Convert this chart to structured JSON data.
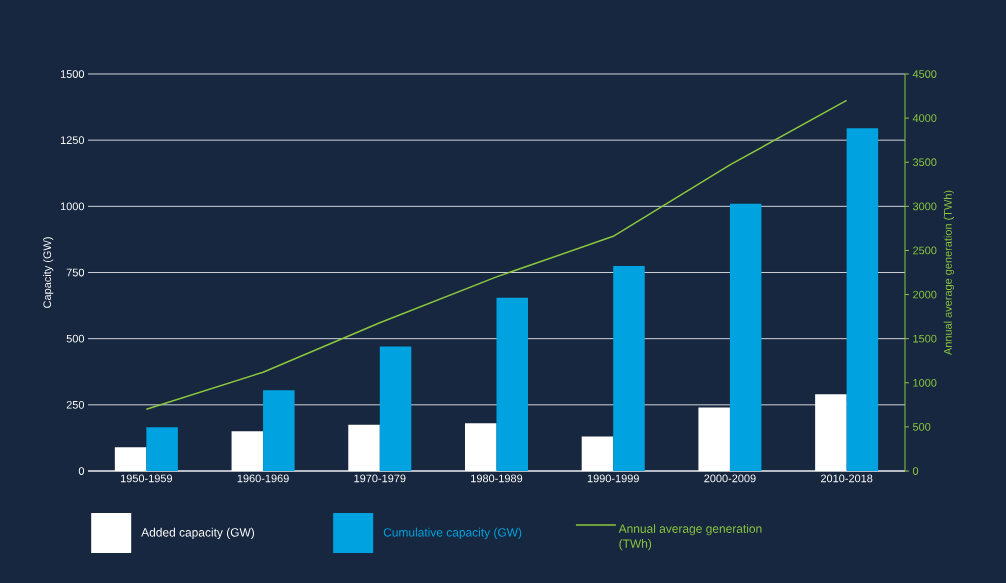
{
  "chart_data": {
    "type": "bar",
    "categories": [
      "1950-1959",
      "1960-1969",
      "1970-1979",
      "1980-1989",
      "1990-1999",
      "2000-2009",
      "2010-2018"
    ],
    "series": [
      {
        "name": "Added capacity (GW)",
        "color": "#ffffff",
        "values": [
          90,
          150,
          175,
          180,
          130,
          240,
          290
        ]
      },
      {
        "name": "Cumulative capacity (GW)",
        "color": "#00a3e0",
        "values": [
          165,
          305,
          470,
          655,
          775,
          1010,
          1295
        ]
      },
      {
        "name": "Annual average generation (TWh)",
        "type": "line",
        "axis": "y2",
        "color": "#8dc63f",
        "values": [
          700,
          1120,
          1680,
          2200,
          2660,
          3470,
          4200
        ]
      }
    ],
    "ylabel": "Capacity (GW)",
    "y2label": "Annual average generation (TWh)",
    "ylim": [
      0,
      1500
    ],
    "yticks": [
      0,
      250,
      500,
      750,
      1000,
      1250,
      1500
    ],
    "y2lim": [
      0,
      4500
    ],
    "y2ticks": [
      0,
      500,
      1000,
      1500,
      2000,
      2500,
      3000,
      3500,
      4000,
      4500
    ],
    "grid": "y",
    "legend": "bottom"
  }
}
